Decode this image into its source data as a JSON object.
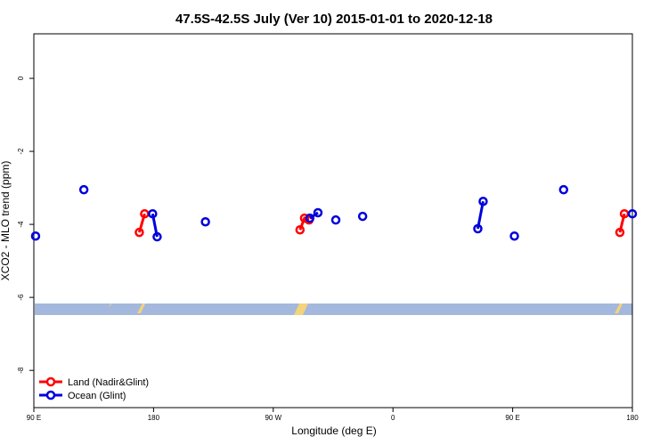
{
  "chart_data": {
    "type": "line",
    "title": "47.5S-42.5S July (Ver 10)   2015-01-01 to 2020-12-18",
    "x_label": "Longitude (deg E)",
    "y_label": "XCO2 - MLO trend (ppm)",
    "xlim": [
      90,
      540
    ],
    "xticks": [
      {
        "value": 90,
        "label": "90 E"
      },
      {
        "value": 180,
        "label": "180"
      },
      {
        "value": 270,
        "label": "90 W"
      },
      {
        "value": 360,
        "label": "0"
      },
      {
        "value": 450,
        "label": "90 E"
      },
      {
        "value": 540,
        "label": "180"
      }
    ],
    "ylim": [
      -9.02,
      1.22
    ],
    "yticks": [
      0,
      -2,
      -4,
      -6,
      -8
    ],
    "legend": "bottom left",
    "series": [
      {
        "name": "Land (Nadir&Glint)",
        "color": "#ff0000",
        "x": [
          169.3,
          173.3,
          null,
          290.1,
          293.5,
          296.9,
          null,
          530.6,
          534.0
        ],
        "values": [
          -4.22,
          -3.71,
          null,
          -4.15,
          -3.83,
          -3.88,
          null,
          -4.22,
          -3.71
        ]
      },
      {
        "name": "Ocean (Glint)",
        "color": "#0000dd",
        "x": [
          91.3,
          null,
          127.6,
          null,
          179.3,
          182.7,
          null,
          219.0,
          null,
          297.5,
          303.6,
          null,
          317.0,
          null,
          337.2,
          null,
          423.8,
          427.8,
          null,
          451.3,
          null,
          488.3,
          null,
          540.0
        ],
        "values": [
          -4.32,
          null,
          -3.05,
          null,
          -3.71,
          -4.34,
          null,
          -3.93,
          null,
          -3.83,
          -3.68,
          null,
          -3.88,
          null,
          -3.78,
          null,
          -4.12,
          -3.37,
          null,
          -4.32,
          null,
          -3.05,
          null,
          -3.71
        ]
      }
    ]
  }
}
